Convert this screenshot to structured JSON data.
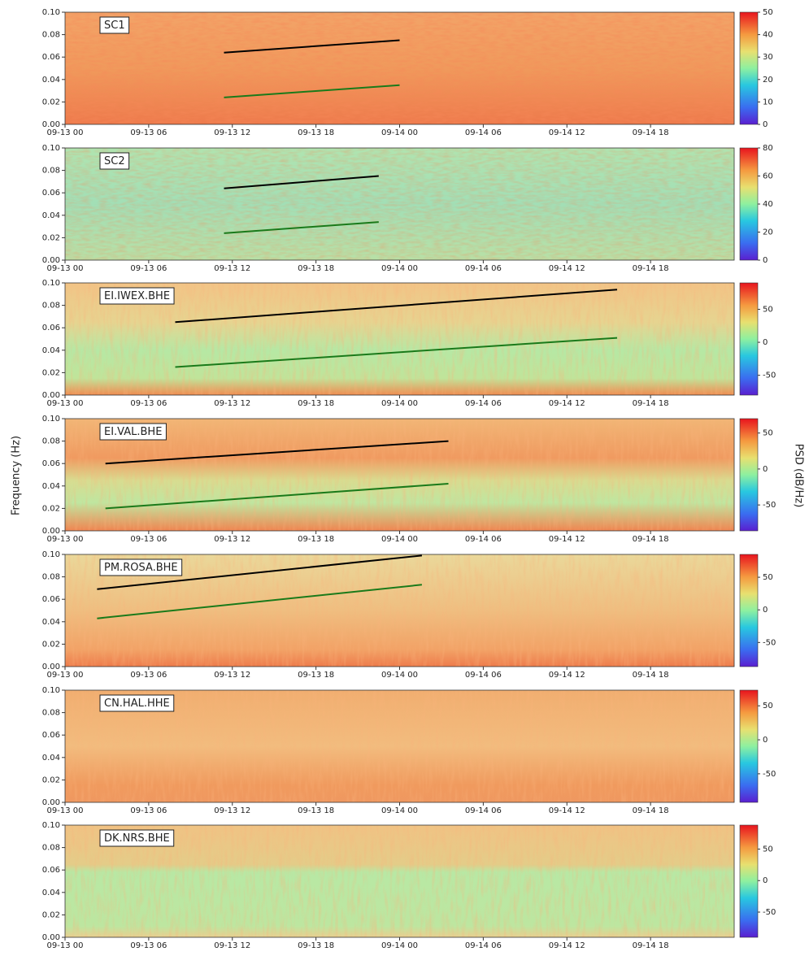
{
  "ylabel": "Frequency (Hz)",
  "colorbar_label": "PSD (dB/Hz)",
  "chart_data": [
    {
      "type": "spectrogram",
      "title": "SC1",
      "xlim": [
        0,
        48
      ],
      "ylim": [
        0,
        0.1
      ],
      "xticks": [
        {
          "value": 0,
          "label": "09-13 00"
        },
        {
          "value": 6,
          "label": "09-13 06"
        },
        {
          "value": 12,
          "label": "09-13 12"
        },
        {
          "value": 18,
          "label": "09-13 18"
        },
        {
          "value": 24,
          "label": "09-14 00"
        },
        {
          "value": 30,
          "label": "09-14 06"
        },
        {
          "value": 36,
          "label": "09-14 12"
        },
        {
          "value": 42,
          "label": "09-14 18"
        }
      ],
      "yticks": [
        {
          "value": 0,
          "label": "0.00"
        },
        {
          "value": 0.02,
          "label": "0.02"
        },
        {
          "value": 0.04,
          "label": "0.04"
        },
        {
          "value": 0.06,
          "label": "0.06"
        },
        {
          "value": 0.08,
          "label": "0.08"
        },
        {
          "value": 0.1,
          "label": "0.10"
        }
      ],
      "clim": [
        0,
        50
      ],
      "cticks": [
        0,
        10,
        20,
        30,
        40,
        50
      ],
      "lines": [
        {
          "color": "#000000",
          "x": [
            11.4,
            24
          ],
          "y": [
            0.064,
            0.075
          ]
        },
        {
          "color": "#1a7a1a",
          "x": [
            11.4,
            24
          ],
          "y": [
            0.024,
            0.035
          ]
        }
      ]
    },
    {
      "type": "spectrogram",
      "title": "SC2",
      "xlim": [
        0,
        48
      ],
      "ylim": [
        0,
        0.1
      ],
      "xticks": [
        {
          "value": 0,
          "label": "09-13 00"
        },
        {
          "value": 6,
          "label": "09-13 06"
        },
        {
          "value": 12,
          "label": "09-13 12"
        },
        {
          "value": 18,
          "label": "09-13 18"
        },
        {
          "value": 24,
          "label": "09-14 00"
        },
        {
          "value": 30,
          "label": "09-14 06"
        },
        {
          "value": 36,
          "label": "09-14 12"
        },
        {
          "value": 42,
          "label": "09-14 18"
        }
      ],
      "yticks": [
        {
          "value": 0,
          "label": "0.00"
        },
        {
          "value": 0.02,
          "label": "0.02"
        },
        {
          "value": 0.04,
          "label": "0.04"
        },
        {
          "value": 0.06,
          "label": "0.06"
        },
        {
          "value": 0.08,
          "label": "0.08"
        },
        {
          "value": 0.1,
          "label": "0.10"
        }
      ],
      "clim": [
        0,
        80
      ],
      "cticks": [
        0,
        20,
        40,
        60,
        80
      ],
      "lines": [
        {
          "color": "#000000",
          "x": [
            11.4,
            22.5
          ],
          "y": [
            0.064,
            0.075
          ]
        },
        {
          "color": "#1a7a1a",
          "x": [
            11.4,
            22.5
          ],
          "y": [
            0.024,
            0.034
          ]
        }
      ]
    },
    {
      "type": "spectrogram",
      "title": "EI.IWEX.BHE",
      "xlim": [
        0,
        48
      ],
      "ylim": [
        0,
        0.1
      ],
      "xticks": [
        {
          "value": 0,
          "label": "09-13 00"
        },
        {
          "value": 6,
          "label": "09-13 06"
        },
        {
          "value": 12,
          "label": "09-13 12"
        },
        {
          "value": 18,
          "label": "09-13 18"
        },
        {
          "value": 24,
          "label": "09-14 00"
        },
        {
          "value": 30,
          "label": "09-14 06"
        },
        {
          "value": 36,
          "label": "09-14 12"
        },
        {
          "value": 42,
          "label": "09-14 18"
        }
      ],
      "yticks": [
        {
          "value": 0,
          "label": "0.00"
        },
        {
          "value": 0.02,
          "label": "0.02"
        },
        {
          "value": 0.04,
          "label": "0.04"
        },
        {
          "value": 0.06,
          "label": "0.06"
        },
        {
          "value": 0.08,
          "label": "0.08"
        },
        {
          "value": 0.1,
          "label": "0.10"
        }
      ],
      "clim": [
        -80,
        90
      ],
      "cticks": [
        -50,
        0,
        50
      ],
      "lines": [
        {
          "color": "#000000",
          "x": [
            7.9,
            39.6
          ],
          "y": [
            0.065,
            0.094
          ]
        },
        {
          "color": "#1a7a1a",
          "x": [
            7.9,
            39.6
          ],
          "y": [
            0.025,
            0.051
          ]
        }
      ]
    },
    {
      "type": "spectrogram",
      "title": "EI.VAL.BHE",
      "xlim": [
        0,
        48
      ],
      "ylim": [
        0,
        0.1
      ],
      "xticks": [
        {
          "value": 0,
          "label": "09-13 00"
        },
        {
          "value": 6,
          "label": "09-13 06"
        },
        {
          "value": 12,
          "label": "09-13 12"
        },
        {
          "value": 18,
          "label": "09-13 18"
        },
        {
          "value": 24,
          "label": "09-14 00"
        },
        {
          "value": 30,
          "label": "09-14 06"
        },
        {
          "value": 36,
          "label": "09-14 12"
        },
        {
          "value": 42,
          "label": "09-14 18"
        }
      ],
      "yticks": [
        {
          "value": 0,
          "label": "0.00"
        },
        {
          "value": 0.02,
          "label": "0.02"
        },
        {
          "value": 0.04,
          "label": "0.04"
        },
        {
          "value": 0.06,
          "label": "0.06"
        },
        {
          "value": 0.08,
          "label": "0.08"
        },
        {
          "value": 0.1,
          "label": "0.10"
        }
      ],
      "clim": [
        -86,
        70
      ],
      "cticks": [
        -50,
        0,
        50
      ],
      "lines": [
        {
          "color": "#000000",
          "x": [
            2.9,
            27.5
          ],
          "y": [
            0.06,
            0.08
          ]
        },
        {
          "color": "#1a7a1a",
          "x": [
            2.9,
            27.5
          ],
          "y": [
            0.02,
            0.042
          ]
        }
      ]
    },
    {
      "type": "spectrogram",
      "title": "PM.ROSA.BHE",
      "xlim": [
        0,
        48
      ],
      "ylim": [
        0,
        0.1
      ],
      "xticks": [
        {
          "value": 0,
          "label": "09-13 00"
        },
        {
          "value": 6,
          "label": "09-13 06"
        },
        {
          "value": 12,
          "label": "09-13 12"
        },
        {
          "value": 18,
          "label": "09-13 18"
        },
        {
          "value": 24,
          "label": "09-14 00"
        },
        {
          "value": 30,
          "label": "09-14 06"
        },
        {
          "value": 36,
          "label": "09-14 12"
        },
        {
          "value": 42,
          "label": "09-14 18"
        }
      ],
      "yticks": [
        {
          "value": 0,
          "label": "0.00"
        },
        {
          "value": 0.02,
          "label": "0.02"
        },
        {
          "value": 0.04,
          "label": "0.04"
        },
        {
          "value": 0.06,
          "label": "0.06"
        },
        {
          "value": 0.08,
          "label": "0.08"
        },
        {
          "value": 0.1,
          "label": "0.10"
        }
      ],
      "clim": [
        -87,
        85
      ],
      "cticks": [
        -50,
        0,
        50
      ],
      "lines": [
        {
          "color": "#000000",
          "x": [
            2.3,
            25.6
          ],
          "y": [
            0.069,
            0.099
          ]
        },
        {
          "color": "#1a7a1a",
          "x": [
            2.3,
            25.6
          ],
          "y": [
            0.043,
            0.073
          ]
        }
      ]
    },
    {
      "type": "spectrogram",
      "title": "CN.HAL.HHE",
      "xlim": [
        0,
        48
      ],
      "ylim": [
        0,
        0.1
      ],
      "xticks": [
        {
          "value": 0,
          "label": "09-13 00"
        },
        {
          "value": 6,
          "label": "09-13 06"
        },
        {
          "value": 12,
          "label": "09-13 12"
        },
        {
          "value": 18,
          "label": "09-13 18"
        },
        {
          "value": 24,
          "label": "09-14 00"
        },
        {
          "value": 30,
          "label": "09-14 06"
        },
        {
          "value": 36,
          "label": "09-14 12"
        },
        {
          "value": 42,
          "label": "09-14 18"
        }
      ],
      "yticks": [
        {
          "value": 0,
          "label": "0.00"
        },
        {
          "value": 0.02,
          "label": "0.02"
        },
        {
          "value": 0.04,
          "label": "0.04"
        },
        {
          "value": 0.06,
          "label": "0.06"
        },
        {
          "value": 0.08,
          "label": "0.08"
        },
        {
          "value": 0.1,
          "label": "0.10"
        }
      ],
      "clim": [
        -92,
        73
      ],
      "cticks": [
        -50,
        0,
        50
      ],
      "lines": []
    },
    {
      "type": "spectrogram",
      "title": "DK.NRS.BHE",
      "xlim": [
        0,
        48
      ],
      "ylim": [
        0,
        0.1
      ],
      "xticks": [
        {
          "value": 0,
          "label": "09-13 00"
        },
        {
          "value": 6,
          "label": "09-13 06"
        },
        {
          "value": 12,
          "label": "09-13 12"
        },
        {
          "value": 18,
          "label": "09-13 18"
        },
        {
          "value": 24,
          "label": "09-14 00"
        },
        {
          "value": 30,
          "label": "09-14 06"
        },
        {
          "value": 36,
          "label": "09-14 12"
        },
        {
          "value": 42,
          "label": "09-14 18"
        }
      ],
      "yticks": [
        {
          "value": 0,
          "label": "0.00"
        },
        {
          "value": 0.02,
          "label": "0.02"
        },
        {
          "value": 0.04,
          "label": "0.04"
        },
        {
          "value": 0.06,
          "label": "0.06"
        },
        {
          "value": 0.08,
          "label": "0.08"
        },
        {
          "value": 0.1,
          "label": "0.10"
        }
      ],
      "clim": [
        -90,
        88
      ],
      "cticks": [
        -50,
        0,
        50
      ],
      "lines": []
    }
  ]
}
